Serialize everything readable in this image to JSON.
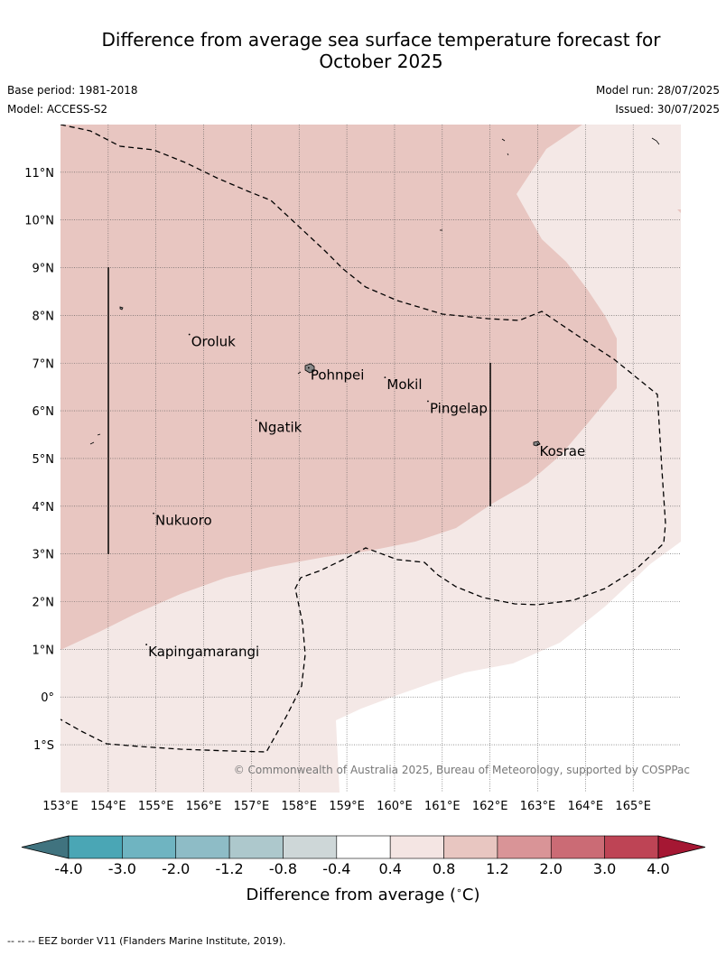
{
  "title_line1": "Difference from average sea surface temperature forecast for",
  "title_line2": "October 2025",
  "base_period": "Base period: 1981-2018",
  "model": "Model: ACCESS-S2",
  "model_run": "Model run: 28/07/2025",
  "issued": "Issued: 30/07/2025",
  "copyright": "© Commonwealth of Australia 2025, Bureau of Meteorology, supported by COSPPac",
  "footnote": "--  --  -- EEZ border V11 (Flanders Marine Institute, 2019).",
  "lat_labels": [
    "11°N",
    "10°N",
    "9°N",
    "8°N",
    "7°N",
    "6°N",
    "5°N",
    "4°N",
    "3°N",
    "2°N",
    "1°N",
    "0°",
    "1°S"
  ],
  "lon_labels": [
    "153°E",
    "154°E",
    "155°E",
    "156°E",
    "157°E",
    "158°E",
    "159°E",
    "160°E",
    "161°E",
    "162°E",
    "163°E",
    "164°E",
    "165°E"
  ],
  "places": [
    {
      "name": "Oroluk",
      "lon": 155.7,
      "lat": 7.6
    },
    {
      "name": "Pohnpei",
      "lon": 158.2,
      "lat": 6.9
    },
    {
      "name": "Mokil",
      "lon": 159.8,
      "lat": 6.7
    },
    {
      "name": "Pingelap",
      "lon": 160.7,
      "lat": 6.2
    },
    {
      "name": "Ngatik",
      "lon": 157.1,
      "lat": 5.8
    },
    {
      "name": "Kosrae",
      "lon": 163.0,
      "lat": 5.3
    },
    {
      "name": "Nukuoro",
      "lon": 154.95,
      "lat": 3.85
    },
    {
      "name": "Kapingamarangi",
      "lon": 154.8,
      "lat": 1.1
    }
  ],
  "colorbar": {
    "title": "Difference from average ($^\\circ$C)",
    "tick_labels": [
      "-4.0",
      "-3.0",
      "-2.0",
      "-1.2",
      "-0.8",
      "-0.4",
      "0.4",
      "0.8",
      "1.2",
      "2.0",
      "3.0",
      "4.0"
    ],
    "colors": [
      "#40737f",
      "#4aa6b5",
      "#6fb4c1",
      "#8ebcc6",
      "#adc8cc",
      "#ced7d8",
      "#ffffff",
      "#f4e5e3",
      "#e8c6c1",
      "#d99497",
      "#cb6b75",
      "#be4455",
      "#a51733"
    ]
  },
  "fill_colors": {
    "light": "#f4e8e6",
    "mid": "#e8c6c1"
  },
  "chart_data": {
    "type": "map",
    "xlim": [
      153,
      166
    ],
    "ylim": [
      -2,
      12
    ],
    "grid": true,
    "field": "sea surface temperature anomaly (°C)",
    "contour_levels": [
      0.4,
      0.8
    ],
    "regions": [
      {
        "range": "0.8 to 1.2",
        "color": "#e8c6c1",
        "area": "north and west"
      },
      {
        "range": "0.4 to 0.8",
        "color": "#f4e8e6",
        "area": "east and south"
      },
      {
        "range": "-0.4 to 0.4",
        "color": "#ffffff",
        "area": "south-central"
      }
    ]
  }
}
